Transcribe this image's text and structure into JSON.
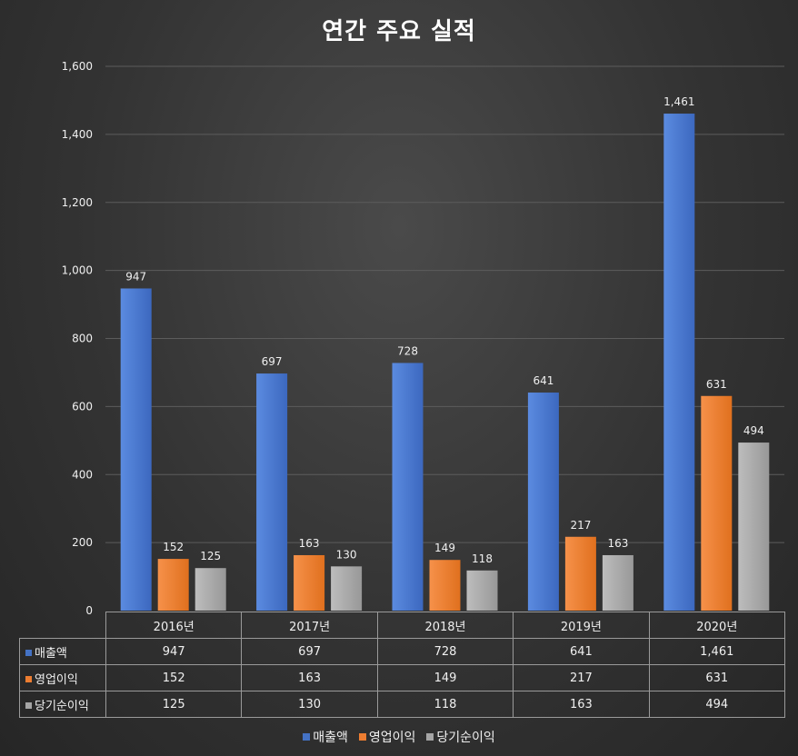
{
  "chart_data": {
    "type": "bar",
    "title": "연간 주요 실적",
    "categories": [
      "2016년",
      "2017년",
      "2018년",
      "2019년",
      "2020년"
    ],
    "series": [
      {
        "name": "매출액",
        "color": "#4472c4",
        "values": [
          947,
          697,
          728,
          641,
          1461
        ],
        "labels": [
          "947",
          "697",
          "728",
          "641",
          "1,461"
        ]
      },
      {
        "name": "영업이익",
        "color": "#ed7d31",
        "values": [
          152,
          163,
          149,
          217,
          631
        ],
        "labels": [
          "152",
          "163",
          "149",
          "217",
          "631"
        ]
      },
      {
        "name": "당기순이익",
        "color": "#a5a5a5",
        "values": [
          125,
          130,
          118,
          163,
          494
        ],
        "labels": [
          "125",
          "130",
          "118",
          "163",
          "494"
        ]
      }
    ],
    "ylim": [
      0,
      1600
    ],
    "yticks": [
      0,
      200,
      400,
      600,
      800,
      1000,
      1200,
      1400,
      1600
    ],
    "ytick_labels": [
      "0",
      "200",
      "400",
      "600",
      "800",
      "1,000",
      "1,200",
      "1,400",
      "1,600"
    ],
    "xlabel": "",
    "ylabel": "",
    "grid": true,
    "legend": "bottom",
    "data_table": true
  }
}
